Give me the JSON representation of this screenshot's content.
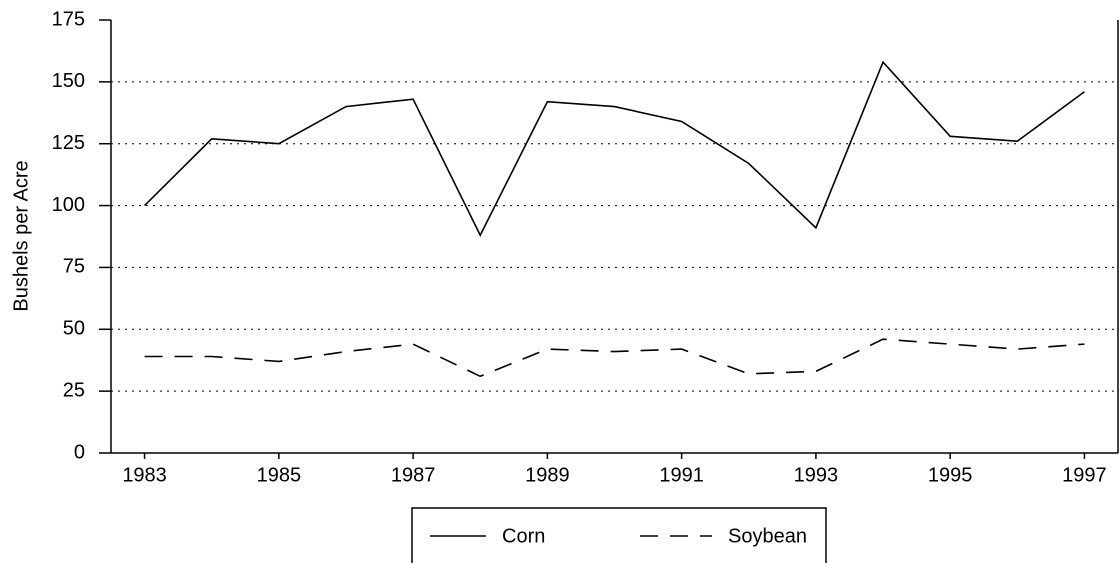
{
  "chart_data": {
    "type": "line",
    "ylabel": "Bushels per Acre",
    "x": [
      1983,
      1984,
      1985,
      1986,
      1987,
      1988,
      1989,
      1990,
      1991,
      1992,
      1993,
      1994,
      1995,
      1996,
      1997
    ],
    "xlim": [
      1982.5,
      1997.5
    ],
    "xticks": [
      1983,
      1985,
      1987,
      1989,
      1991,
      1993,
      1995,
      1997
    ],
    "ylim": [
      0,
      175
    ],
    "yticks": [
      0,
      25,
      50,
      75,
      100,
      125,
      150,
      175
    ],
    "grid": true,
    "legend": "bottom",
    "series": [
      {
        "name": "Corn",
        "color": "#000000",
        "dash": "solid",
        "values": [
          100,
          127,
          125,
          140,
          143,
          88,
          142,
          140,
          134,
          117,
          91,
          158,
          128,
          126,
          146
        ]
      },
      {
        "name": "Soybean",
        "color": "#000000",
        "dash": "dashed",
        "values": [
          39,
          39,
          37,
          41,
          44,
          31,
          42,
          41,
          42,
          32,
          33,
          46,
          44,
          42,
          44
        ]
      }
    ]
  }
}
